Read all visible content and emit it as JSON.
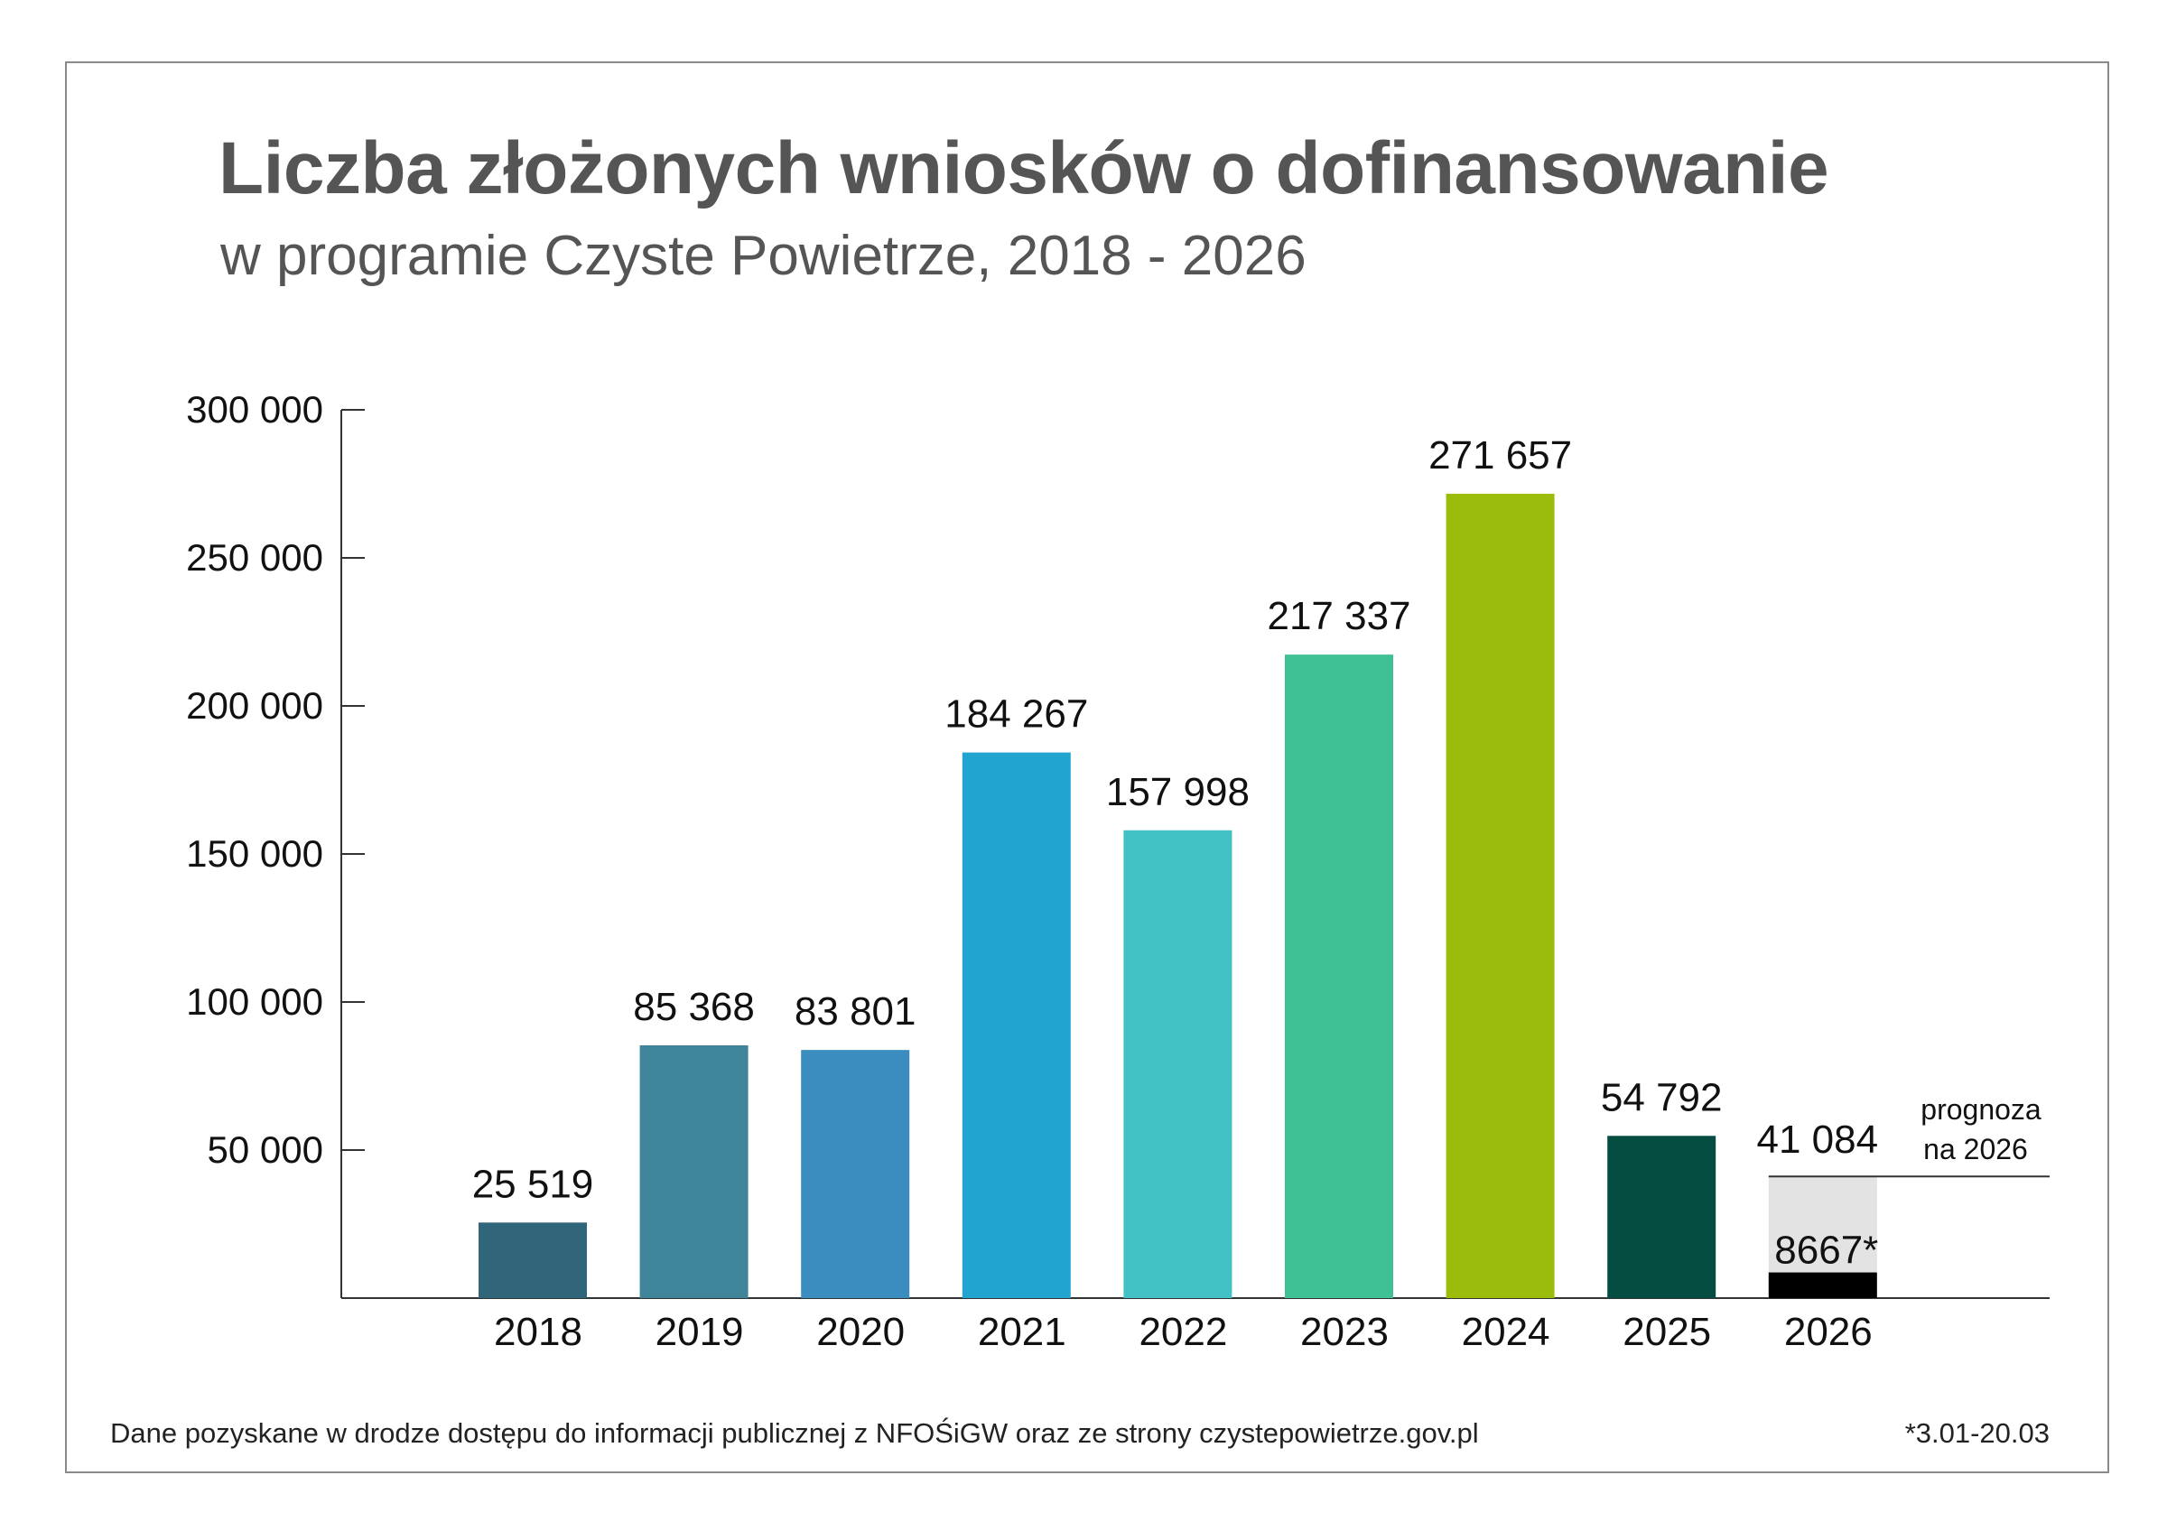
{
  "title": "Liczba złożonych wniosków o dofinansowanie",
  "subtitle": "w programie Czyste Powietrze, 2018 - 2026",
  "footer": {
    "source": "Dane pozyskane w drodze dostępu do informacji publicznej z NFOŚiGW oraz ze strony czystepowietrze.gov.pl",
    "period_note": "*3.01-20.03"
  },
  "chart_data": {
    "type": "bar",
    "title": "Liczba złożonych wniosków o dofinansowanie",
    "subtitle": "w programie Czyste Powietrze, 2018 - 2026",
    "xlabel": "",
    "ylabel": "",
    "ylim": [
      0,
      300000
    ],
    "yticks": [
      50000,
      100000,
      150000,
      200000,
      250000,
      300000
    ],
    "ytick_labels": [
      "50 000",
      "100 000",
      "150 000",
      "200 000",
      "250 000",
      "300 000"
    ],
    "grid": false,
    "categories": [
      "2018",
      "2019",
      "2020",
      "2021",
      "2022",
      "2023",
      "2024",
      "2025",
      "2026"
    ],
    "values": [
      25519,
      85368,
      83801,
      184267,
      157998,
      217337,
      271657,
      54792,
      8667
    ],
    "value_labels": [
      "25 519",
      "85 368",
      "83 801",
      "184 267",
      "157 998",
      "217 337",
      "271 657",
      "54 792",
      "8667*"
    ],
    "colors": [
      "#31657a",
      "#3e8599",
      "#3b8dc0",
      "#22a4d1",
      "#42c2c4",
      "#40c095",
      "#9bbc0a",
      "#054d40",
      "#000000"
    ],
    "forecast": {
      "category": "2026",
      "value": 41084,
      "label": "41 084",
      "annotation_line1": "prognoza",
      "annotation_line2": "na 2026",
      "color": "#e3e3e3"
    }
  }
}
